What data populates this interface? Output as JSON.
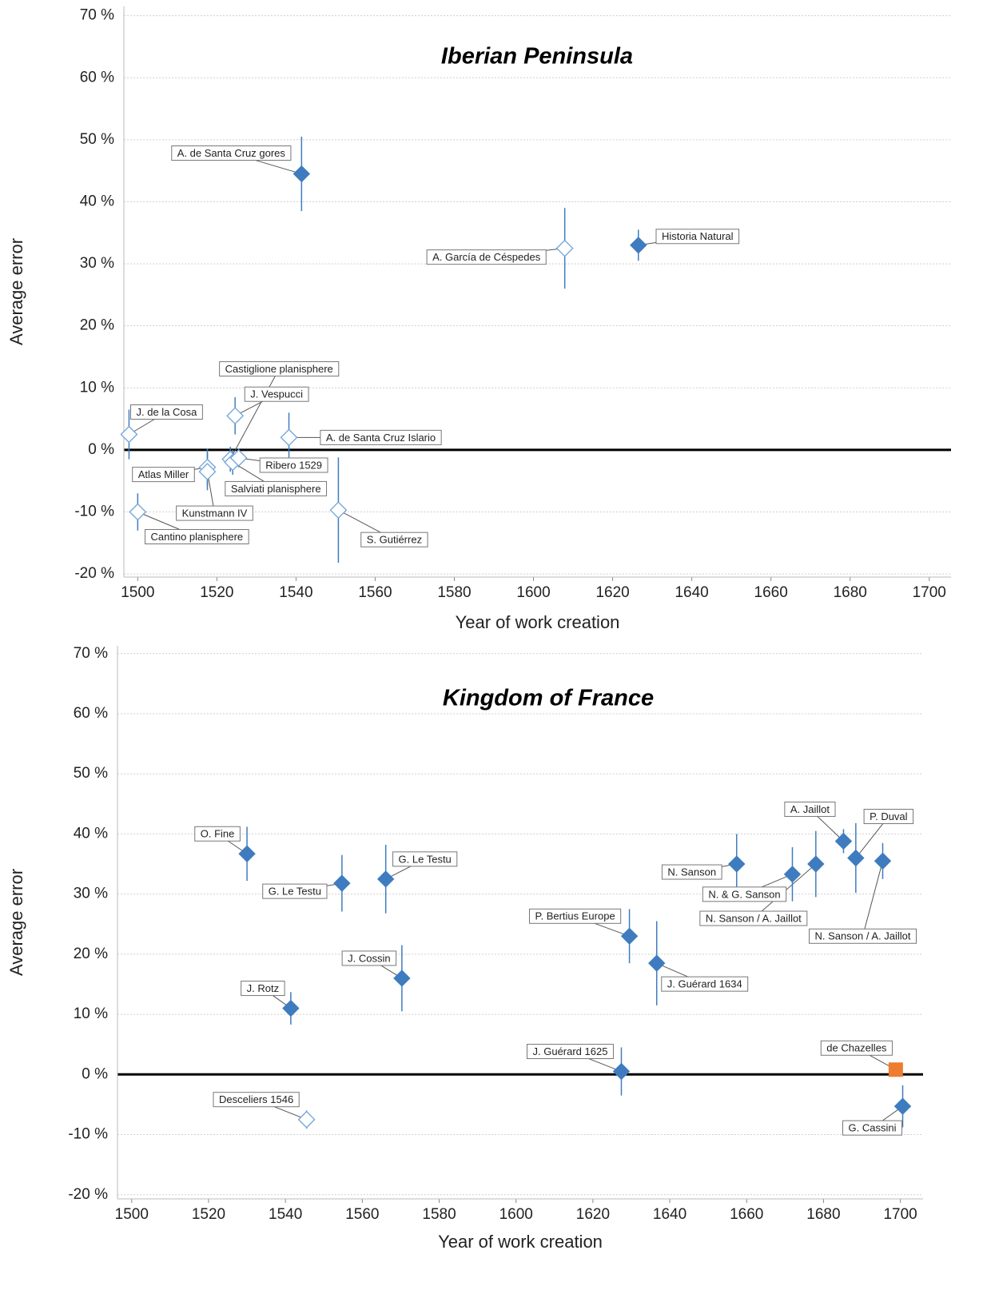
{
  "chart_data": [
    {
      "type": "scatter",
      "title": "Iberian Peninsula",
      "xlabel": "Year of work creation",
      "ylabel": "Average error",
      "xlim": [
        1496.5,
        1705.5
      ],
      "ylim": [
        -20.5,
        71.5
      ],
      "xticks": [
        1500,
        1520,
        1540,
        1560,
        1580,
        1600,
        1620,
        1640,
        1660,
        1680,
        1700
      ],
      "yticks": [
        {
          "value": -20,
          "label": "-20 %"
        },
        {
          "value": -10,
          "label": "-10 %"
        },
        {
          "value": 0,
          "label": "0 %"
        },
        {
          "value": 10,
          "label": "10 %"
        },
        {
          "value": 20,
          "label": "20 %"
        },
        {
          "value": 30,
          "label": "30 %"
        },
        {
          "value": 40,
          "label": "40 %"
        },
        {
          "value": 50,
          "label": "50 %"
        },
        {
          "value": 60,
          "label": "60 %"
        },
        {
          "value": 70,
          "label": "70 %"
        }
      ],
      "grid": true,
      "zero_line": true,
      "marker_colors": {
        "filled": "#3f7cbf",
        "hollow": "#6fa3d8",
        "square": "#ed7d31"
      },
      "labels": [
        "J. de la Cosa",
        "Cantino planisphere",
        "Atlas Miller",
        "Kunstmann IV",
        "Castiglione planisphere",
        "Salviati planisphere",
        "Ribero 1529",
        "J. Vespucci",
        "A. de Santa Cruz Islario",
        "S. Gutiérrez",
        "A. de Santa Cruz gores",
        "A. García de Céspedes",
        "Historia Natural"
      ],
      "x": [
        1497.8,
        1500,
        1517.6,
        1517.6,
        1523.4,
        1524,
        1525.5,
        1524.6,
        1538.2,
        1550.7,
        1541.4,
        1607.9,
        1626.5
      ],
      "values": [
        2.5,
        -10,
        -2.8,
        -3.5,
        -1.5,
        -2,
        -1.3,
        5.5,
        2,
        -9.7,
        44.5,
        32.5,
        33
      ],
      "errors": [
        4,
        3,
        3,
        3,
        2,
        2,
        1.5,
        3,
        4,
        8.5,
        6,
        6.5,
        2.5
      ],
      "markers": [
        "hollow",
        "hollow",
        "hollow",
        "hollow",
        "hollow",
        "hollow",
        "hollow",
        "hollow",
        "hollow",
        "hollow",
        "filled",
        "hollow",
        "filled"
      ]
    },
    {
      "type": "scatter",
      "title": "Kingdom of France",
      "xlabel": "Year of work creation",
      "ylabel": "Average error",
      "xlim": [
        1496.3,
        1705.9
      ],
      "ylim": [
        -20.7,
        71.3
      ],
      "xticks": [
        1500,
        1520,
        1540,
        1560,
        1580,
        1600,
        1620,
        1640,
        1660,
        1680,
        1700
      ],
      "yticks": [
        {
          "value": -20,
          "label": "-20 %"
        },
        {
          "value": -10,
          "label": "-10 %"
        },
        {
          "value": 0,
          "label": "0 %"
        },
        {
          "value": 10,
          "label": "10 %"
        },
        {
          "value": 20,
          "label": "20 %"
        },
        {
          "value": 30,
          "label": "30 %"
        },
        {
          "value": 40,
          "label": "40 %"
        },
        {
          "value": 50,
          "label": "50 %"
        },
        {
          "value": 60,
          "label": "60 %"
        },
        {
          "value": 70,
          "label": "70 %"
        }
      ],
      "grid": true,
      "zero_line": true,
      "marker_colors": {
        "filled": "#3f7cbf",
        "hollow": "#6fa3d8",
        "square": "#ed7d31"
      },
      "labels": [
        "O. Fine",
        "G. Le Testu",
        "G. Le Testu",
        "J. Rotz",
        "J. Cossin",
        "Desceliers 1546",
        "P. Bertius Europe",
        "J. Guérard 1634",
        "J. Guérard 1625",
        "N. Sanson",
        "N. & G. Sanson",
        "N. Sanson / A. Jaillot",
        "A. Jaillot",
        "P. Duval",
        "N. Sanson / A. Jaillot",
        "de Chazelles",
        "G. Cassini"
      ],
      "x": [
        1530,
        1554.7,
        1566.1,
        1541.4,
        1570.3,
        1545.5,
        1629.5,
        1636.6,
        1627.4,
        1657.4,
        1671.9,
        1678,
        1685.2,
        1688.4,
        1695.4,
        1698.8,
        1700.6
      ],
      "values": [
        36.7,
        31.8,
        32.5,
        11,
        16,
        -7.5,
        23,
        18.5,
        0.5,
        35,
        33.3,
        35,
        38.8,
        36,
        35.5,
        0.8,
        -5.3
      ],
      "errors": [
        4.5,
        4.7,
        5.7,
        2.7,
        5.5,
        1.5,
        4.5,
        7,
        4,
        5,
        4.5,
        5.5,
        2,
        5.8,
        3,
        null,
        3.5
      ],
      "markers": [
        "filled",
        "filled",
        "filled",
        "filled",
        "filled",
        "hollow",
        "filled",
        "filled",
        "filled",
        "filled",
        "filled",
        "filled",
        "filled",
        "filled",
        "filled",
        "square",
        "filled"
      ]
    }
  ]
}
